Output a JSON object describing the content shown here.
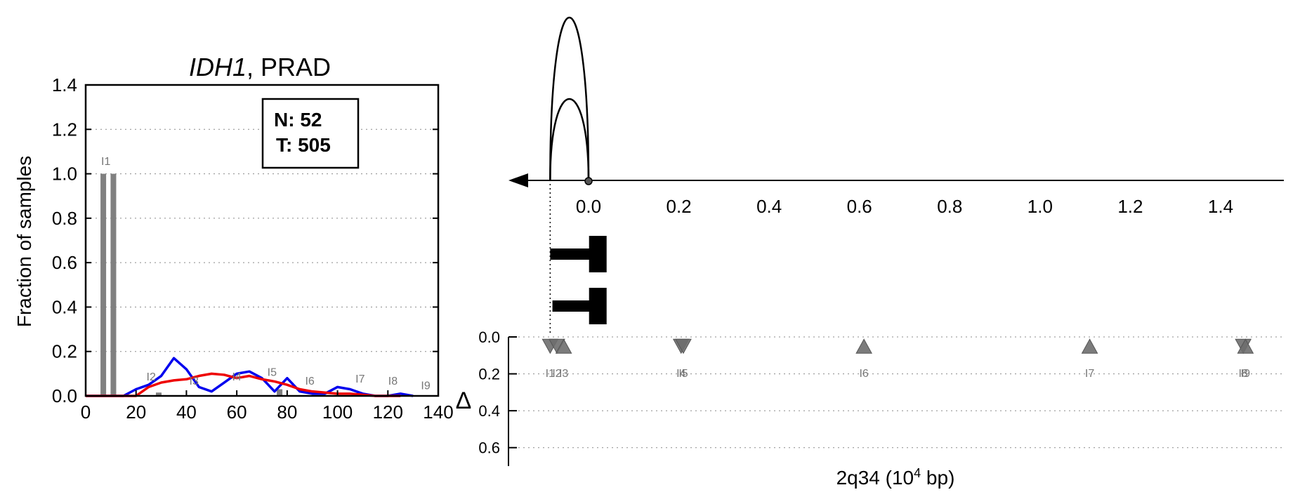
{
  "chart_data": [
    {
      "type": "bar",
      "title": "IDH1, PRAD",
      "title_parts": {
        "gene": "IDH1",
        "rest": ", PRAD"
      },
      "xlabel": "",
      "ylabel": "Fraction of samples",
      "xlim": [
        0,
        140
      ],
      "ylim": [
        0.0,
        1.4
      ],
      "xticks": [
        "0",
        "20",
        "40",
        "60",
        "80",
        "100",
        "120",
        "140"
      ],
      "yticks": [
        "0.0",
        "0.2",
        "0.4",
        "0.6",
        "0.8",
        "1.0",
        "1.2",
        "1.4"
      ],
      "grid": "horizontal dotted",
      "legend": {
        "placement": "top-right",
        "lines": [
          "N: 52",
          "T: 505"
        ]
      },
      "bars": [
        {
          "x": 7,
          "value": 1.0
        },
        {
          "x": 11,
          "value": 1.0
        },
        {
          "x": 29,
          "value": 0.015
        },
        {
          "x": 77,
          "value": 0.03
        }
      ],
      "intron_labels": [
        {
          "label": "I1",
          "x": 8,
          "y": 1.04
        },
        {
          "label": "I2",
          "x": 26,
          "y": 0.07
        },
        {
          "label": "I3",
          "x": 43,
          "y": 0.05
        },
        {
          "label": "I4",
          "x": 60,
          "y": 0.07
        },
        {
          "label": "I5",
          "x": 74,
          "y": 0.09
        },
        {
          "label": "I6",
          "x": 89,
          "y": 0.05
        },
        {
          "label": "I7",
          "x": 109,
          "y": 0.06
        },
        {
          "label": "I8",
          "x": 122,
          "y": 0.05
        },
        {
          "label": "I9",
          "x": 135,
          "y": 0.03
        }
      ],
      "series": [
        {
          "color": "#0000ee",
          "x": [
            0,
            5,
            10,
            15,
            20,
            25,
            30,
            35,
            40,
            45,
            50,
            55,
            60,
            65,
            70,
            75,
            80,
            85,
            90,
            95,
            100,
            105,
            110,
            115,
            120,
            125,
            130
          ],
          "values": [
            0,
            0,
            0,
            0,
            0.03,
            0.05,
            0.09,
            0.17,
            0.12,
            0.04,
            0.02,
            0.06,
            0.1,
            0.11,
            0.08,
            0.02,
            0.08,
            0.02,
            0.01,
            0.01,
            0.04,
            0.03,
            0.01,
            0,
            0,
            0.01,
            0
          ]
        },
        {
          "color": "#ee0000",
          "x": [
            0,
            5,
            10,
            15,
            20,
            25,
            30,
            35,
            40,
            45,
            50,
            55,
            60,
            65,
            70,
            75,
            80,
            85,
            90,
            95,
            100,
            105,
            110,
            115,
            120,
            125
          ],
          "values": [
            0,
            0,
            0,
            0,
            0,
            0.04,
            0.06,
            0.07,
            0.075,
            0.09,
            0.1,
            0.095,
            0.08,
            0.09,
            0.075,
            0.065,
            0.05,
            0.03,
            0.02,
            0.015,
            0.01,
            0.01,
            0.005,
            0,
            0,
            0
          ]
        }
      ]
    },
    {
      "type": "scatter",
      "title": "",
      "xlabel_parts": {
        "region": "2q34 (10",
        "sup": "4",
        "unit": " bp)"
      },
      "ylabel": "Δ",
      "xlim": [
        -0.18,
        1.55
      ],
      "xticks": [
        "0.0",
        "0.2",
        "0.4",
        "0.6",
        "0.8",
        "1.0",
        "1.2",
        "1.4"
      ],
      "ylim": [
        0.0,
        0.7
      ],
      "yticks": [
        "0.0",
        "0.2",
        "0.4",
        "0.6"
      ],
      "grid": "horizontal dotted",
      "strand": "minus",
      "arcs": [
        {
          "from": -0.085,
          "to": 0.0,
          "peak": 1.0
        },
        {
          "from": -0.085,
          "to": 0.0,
          "peak": 0.5
        }
      ],
      "transcripts": [
        {
          "start": -0.085,
          "end": 0.04
        },
        {
          "start": -0.08,
          "end": 0.04
        }
      ],
      "markers": [
        {
          "label": "I1",
          "x": -0.085,
          "delta": 0.02,
          "shape": "down"
        },
        {
          "label": "I2",
          "x": -0.07,
          "delta": 0.02,
          "shape": "down"
        },
        {
          "label": "I3",
          "x": -0.055,
          "delta": 0.02,
          "shape": "up"
        },
        {
          "label": "I4",
          "x": 0.205,
          "delta": 0.02,
          "shape": "down"
        },
        {
          "label": "I5",
          "x": 0.21,
          "delta": 0.02,
          "shape": "down"
        },
        {
          "label": "I6",
          "x": 0.61,
          "delta": 0.02,
          "shape": "up"
        },
        {
          "label": "I7",
          "x": 1.11,
          "delta": 0.02,
          "shape": "up"
        },
        {
          "label": "I8",
          "x": 1.45,
          "delta": 0.02,
          "shape": "down"
        },
        {
          "label": "I9",
          "x": 1.455,
          "delta": 0.02,
          "shape": "up"
        }
      ]
    }
  ]
}
